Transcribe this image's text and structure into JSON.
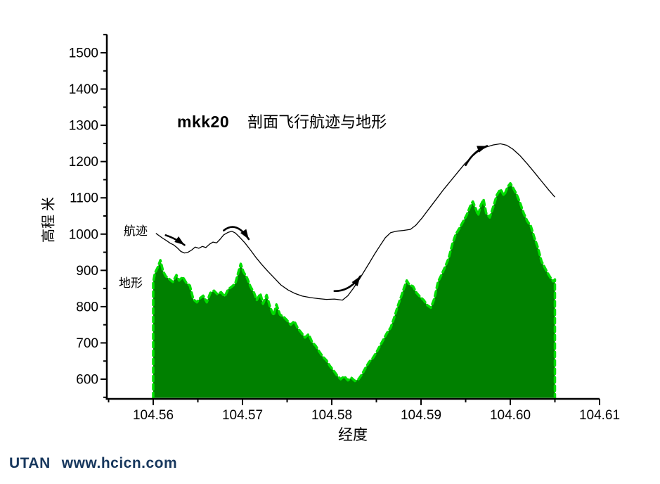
{
  "page": {
    "background": "#ffffff"
  },
  "title": {
    "prefix": "mkk20",
    "text": "剖面飞行航迹与地形"
  },
  "footer": {
    "brand": "UTAN",
    "url": "www.hcicn.com",
    "color": "#17375D"
  },
  "colors": {
    "terrain_fill": "#008000",
    "terrain_outline": "#00DD00",
    "flight_line": "#000000",
    "axis": "#000000"
  },
  "chart_data": {
    "type": "area",
    "title": "mkk20 剖面飞行航迹与地形",
    "xlabel": "经度",
    "ylabel": "高程 米",
    "xlim": [
      104.555,
      104.61
    ],
    "ylim": [
      545,
      1550
    ],
    "grid": false,
    "legend_position": "none",
    "x_major_ticks": {
      "values": [
        104.56,
        104.57,
        104.58,
        104.59,
        104.6,
        104.61
      ],
      "labels": [
        "104.56",
        "104.57",
        "104.58",
        "104.59",
        "104.60",
        "104.61"
      ]
    },
    "x_minor_ticks": [
      104.555,
      104.565,
      104.575,
      104.585,
      104.595,
      104.605
    ],
    "y_major_ticks": {
      "values": [
        600,
        700,
        800,
        900,
        1000,
        1100,
        1200,
        1300,
        1400,
        1500
      ],
      "labels": [
        "600",
        "700",
        "800",
        "900",
        "1000",
        "1100",
        "1200",
        "1300",
        "1400",
        "1500"
      ]
    },
    "y_minor_ticks": [
      550,
      650,
      750,
      850,
      950,
      1050,
      1150,
      1250,
      1350,
      1450,
      1550
    ],
    "series": [
      {
        "name": "航迹",
        "type": "line",
        "color": "#000000",
        "points": [
          [
            104.5603,
            1002
          ],
          [
            104.5607,
            995
          ],
          [
            104.5611,
            988
          ],
          [
            104.5615,
            982
          ],
          [
            104.5619,
            975
          ],
          [
            104.5623,
            970
          ],
          [
            104.5627,
            962
          ],
          [
            104.5631,
            952
          ],
          [
            104.5635,
            948
          ],
          [
            104.5639,
            950
          ],
          [
            104.5643,
            956
          ],
          [
            104.5647,
            964
          ],
          [
            104.5651,
            961
          ],
          [
            104.5655,
            966
          ],
          [
            104.5659,
            963
          ],
          [
            104.5663,
            972
          ],
          [
            104.5667,
            978
          ],
          [
            104.5671,
            976
          ],
          [
            104.5675,
            986
          ],
          [
            104.5679,
            998
          ],
          [
            104.5684,
            1005
          ],
          [
            104.5688,
            1008
          ],
          [
            104.5692,
            1003
          ],
          [
            104.5697,
            991
          ],
          [
            104.5703,
            975
          ],
          [
            104.5709,
            956
          ],
          [
            104.5715,
            936
          ],
          [
            104.5722,
            915
          ],
          [
            104.5729,
            896
          ],
          [
            104.5736,
            878
          ],
          [
            104.5743,
            860
          ],
          [
            104.5751,
            846
          ],
          [
            104.5759,
            836
          ],
          [
            104.5767,
            829
          ],
          [
            104.5776,
            825
          ],
          [
            104.5785,
            822
          ],
          [
            104.5794,
            820
          ],
          [
            104.5803,
            821
          ],
          [
            104.5812,
            818
          ],
          [
            104.5818,
            830
          ],
          [
            104.5824,
            850
          ],
          [
            104.583,
            872
          ],
          [
            104.5836,
            896
          ],
          [
            104.5842,
            920
          ],
          [
            104.5848,
            945
          ],
          [
            104.5854,
            968
          ],
          [
            104.586,
            990
          ],
          [
            104.5866,
            1004
          ],
          [
            104.5872,
            1008
          ],
          [
            104.588,
            1010
          ],
          [
            104.5888,
            1013
          ],
          [
            104.5894,
            1024
          ],
          [
            104.5901,
            1044
          ],
          [
            104.5909,
            1070
          ],
          [
            104.5917,
            1096
          ],
          [
            104.5925,
            1122
          ],
          [
            104.5933,
            1146
          ],
          [
            104.5941,
            1170
          ],
          [
            104.5949,
            1194
          ],
          [
            104.5957,
            1214
          ],
          [
            104.5965,
            1230
          ],
          [
            104.5973,
            1240
          ],
          [
            104.5981,
            1246
          ],
          [
            104.5989,
            1249
          ],
          [
            104.5996,
            1245
          ],
          [
            104.6003,
            1234
          ],
          [
            104.6011,
            1216
          ],
          [
            104.6019,
            1194
          ],
          [
            104.6027,
            1170
          ],
          [
            104.6035,
            1146
          ],
          [
            104.6043,
            1122
          ],
          [
            104.605,
            1102
          ]
        ]
      },
      {
        "name": "地形",
        "type": "area",
        "fill": "#008000",
        "stroke": "#00DD00",
        "points": [
          [
            104.56,
            868
          ],
          [
            104.5602,
            893
          ],
          [
            104.5605,
            908
          ],
          [
            104.5608,
            928
          ],
          [
            104.5611,
            898
          ],
          [
            104.5614,
            884
          ],
          [
            104.5618,
            876
          ],
          [
            104.5622,
            868
          ],
          [
            104.5626,
            887
          ],
          [
            104.5629,
            872
          ],
          [
            104.5633,
            882
          ],
          [
            104.5637,
            866
          ],
          [
            104.5641,
            858
          ],
          [
            104.5645,
            820
          ],
          [
            104.5649,
            812
          ],
          [
            104.5652,
            822
          ],
          [
            104.5656,
            830
          ],
          [
            104.566,
            812
          ],
          [
            104.5664,
            838
          ],
          [
            104.5668,
            844
          ],
          [
            104.5672,
            834
          ],
          [
            104.5676,
            840
          ],
          [
            104.568,
            828
          ],
          [
            104.5684,
            848
          ],
          [
            104.5688,
            855
          ],
          [
            104.5692,
            864
          ],
          [
            104.5695,
            892
          ],
          [
            104.5698,
            918
          ],
          [
            104.5701,
            896
          ],
          [
            104.5705,
            880
          ],
          [
            104.5709,
            855
          ],
          [
            104.5713,
            838
          ],
          [
            104.5716,
            818
          ],
          [
            104.572,
            836
          ],
          [
            104.5723,
            808
          ],
          [
            104.5727,
            832
          ],
          [
            104.5731,
            798
          ],
          [
            104.5735,
            776
          ],
          [
            104.5738,
            806
          ],
          [
            104.5742,
            778
          ],
          [
            104.5746,
            772
          ],
          [
            104.575,
            762
          ],
          [
            104.5754,
            750
          ],
          [
            104.5758,
            760
          ],
          [
            104.5762,
            740
          ],
          [
            104.5766,
            728
          ],
          [
            104.577,
            715
          ],
          [
            104.5774,
            724
          ],
          [
            104.5778,
            702
          ],
          [
            104.5782,
            692
          ],
          [
            104.5786,
            676
          ],
          [
            104.579,
            662
          ],
          [
            104.5794,
            652
          ],
          [
            104.5798,
            636
          ],
          [
            104.5802,
            624
          ],
          [
            104.5806,
            610
          ],
          [
            104.581,
            600
          ],
          [
            104.5814,
            608
          ],
          [
            104.5818,
            597
          ],
          [
            104.5822,
            604
          ],
          [
            104.5826,
            595
          ],
          [
            104.583,
            600
          ],
          [
            104.5834,
            614
          ],
          [
            104.5838,
            632
          ],
          [
            104.5842,
            648
          ],
          [
            104.5846,
            658
          ],
          [
            104.585,
            674
          ],
          [
            104.5854,
            692
          ],
          [
            104.5858,
            710
          ],
          [
            104.5862,
            728
          ],
          [
            104.5866,
            742
          ],
          [
            104.587,
            770
          ],
          [
            104.5874,
            802
          ],
          [
            104.5878,
            830
          ],
          [
            104.5881,
            852
          ],
          [
            104.5884,
            872
          ],
          [
            104.5887,
            860
          ],
          [
            104.5891,
            856
          ],
          [
            104.5895,
            838
          ],
          [
            104.5899,
            827
          ],
          [
            104.5903,
            818
          ],
          [
            104.5907,
            804
          ],
          [
            104.5911,
            797
          ],
          [
            104.5915,
            822
          ],
          [
            104.5919,
            868
          ],
          [
            104.5923,
            888
          ],
          [
            104.5927,
            910
          ],
          [
            104.5931,
            934
          ],
          [
            104.5935,
            972
          ],
          [
            104.5939,
            1000
          ],
          [
            104.5943,
            1016
          ],
          [
            104.5947,
            1034
          ],
          [
            104.5951,
            1052
          ],
          [
            104.5955,
            1076
          ],
          [
            104.5958,
            1090
          ],
          [
            104.5961,
            1072
          ],
          [
            104.5964,
            1052
          ],
          [
            104.5967,
            1080
          ],
          [
            104.597,
            1096
          ],
          [
            104.5973,
            1058
          ],
          [
            104.5977,
            1046
          ],
          [
            104.5981,
            1076
          ],
          [
            104.5985,
            1108
          ],
          [
            104.5989,
            1124
          ],
          [
            104.5993,
            1106
          ],
          [
            104.5997,
            1130
          ],
          [
            104.6,
            1140
          ],
          [
            104.6003,
            1128
          ],
          [
            104.6007,
            1110
          ],
          [
            104.6011,
            1086
          ],
          [
            104.6015,
            1058
          ],
          [
            104.6019,
            1036
          ],
          [
            104.6023,
            1022
          ],
          [
            104.6027,
            990
          ],
          [
            104.6031,
            962
          ],
          [
            104.6035,
            925
          ],
          [
            104.6039,
            906
          ],
          [
            104.6042,
            892
          ],
          [
            104.6045,
            880
          ],
          [
            104.6048,
            870
          ],
          [
            104.605,
            875
          ]
        ]
      }
    ],
    "annotations": {
      "arrows": [
        {
          "from": [
            104.5614,
            997
          ],
          "ctrl": [
            104.5625,
            988
          ],
          "to": [
            104.5635,
            970
          ]
        },
        {
          "from": [
            104.5679,
            1010
          ],
          "ctrl": [
            104.5693,
            1038
          ],
          "to": [
            104.5707,
            986
          ]
        },
        {
          "from": [
            104.5803,
            843
          ],
          "ctrl": [
            104.582,
            842
          ],
          "to": [
            104.5832,
            884
          ]
        },
        {
          "from": [
            104.595,
            1190
          ],
          "ctrl": [
            104.5959,
            1230
          ],
          "to": [
            104.5974,
            1243
          ]
        }
      ]
    }
  }
}
